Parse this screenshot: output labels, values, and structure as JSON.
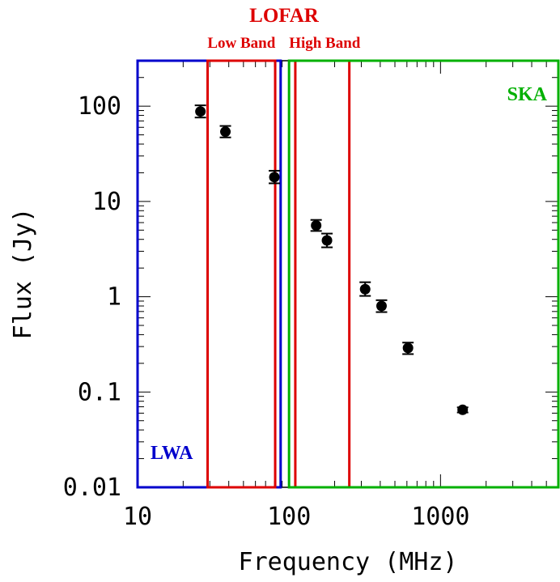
{
  "chart_data": {
    "type": "scatter",
    "xlabel": "Frequency (MHz)",
    "ylabel": "Flux (Jy)",
    "xscale": "log",
    "yscale": "log",
    "xlim": [
      10,
      6000
    ],
    "ylim": [
      0.01,
      300
    ],
    "x_ticks": [
      {
        "value": 10,
        "label": "10"
      },
      {
        "value": 100,
        "label": "100"
      },
      {
        "value": 1000,
        "label": "1000"
      }
    ],
    "y_ticks": [
      {
        "value": 0.01,
        "label": "0.01"
      },
      {
        "value": 0.1,
        "label": "0.1"
      },
      {
        "value": 1,
        "label": "1"
      },
      {
        "value": 10,
        "label": "10"
      },
      {
        "value": 100,
        "label": "100"
      }
    ],
    "points": [
      {
        "x": 26,
        "y": 88,
        "ylo": 76,
        "yhi": 102
      },
      {
        "x": 38,
        "y": 54,
        "ylo": 47,
        "yhi": 62
      },
      {
        "x": 80,
        "y": 18,
        "ylo": 15.5,
        "yhi": 21
      },
      {
        "x": 151,
        "y": 5.6,
        "ylo": 4.9,
        "yhi": 6.4
      },
      {
        "x": 178,
        "y": 3.9,
        "ylo": 3.3,
        "yhi": 4.6
      },
      {
        "x": 318,
        "y": 1.2,
        "ylo": 1.02,
        "yhi": 1.42
      },
      {
        "x": 408,
        "y": 0.8,
        "ylo": 0.69,
        "yhi": 0.92
      },
      {
        "x": 610,
        "y": 0.29,
        "ylo": 0.25,
        "yhi": 0.33
      },
      {
        "x": 1400,
        "y": 0.065,
        "ylo": 0.061,
        "yhi": 0.069
      }
    ],
    "bands": [
      {
        "label": "LWA",
        "color": "#0000cc",
        "xmin": 10,
        "xmax": 88
      },
      {
        "label": "Low Band",
        "color": "#dd0000",
        "xmin": 29,
        "xmax": 81
      },
      {
        "label": "High Band",
        "color": "#dd0000",
        "xmin": 110,
        "xmax": 250
      },
      {
        "label": "SKA",
        "color": "#00b000",
        "xmin": 100,
        "xmax": 6000
      }
    ],
    "band_group_label": {
      "text": "LOFAR",
      "color": "#dd0000"
    },
    "grid": false
  }
}
